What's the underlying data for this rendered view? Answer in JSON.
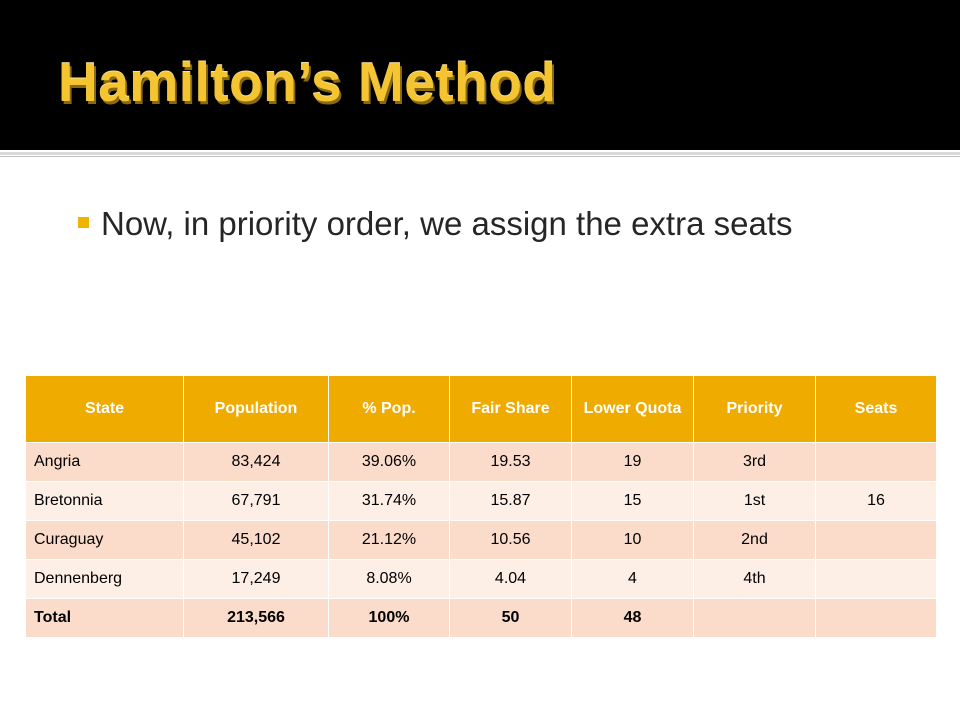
{
  "slide": {
    "title": "Hamilton’s Method",
    "bullet": "Now, in priority order, we assign the extra seats"
  },
  "table": {
    "headers": [
      "State",
      "Population",
      "% Pop.",
      "Fair Share",
      "Lower Quota",
      "Priority",
      "Seats"
    ],
    "rows": [
      [
        "Angria",
        "83,424",
        "39.06%",
        "19.53",
        "19",
        "3rd",
        ""
      ],
      [
        "Bretonnia",
        "67,791",
        "31.74%",
        "15.87",
        "15",
        "1st",
        "16"
      ],
      [
        "Curaguay",
        "45,102",
        "21.12%",
        "10.56",
        "10",
        "2nd",
        ""
      ],
      [
        "Dennenberg",
        "17,249",
        "8.08%",
        "4.04",
        "4",
        "4th",
        ""
      ],
      [
        "Total",
        "213,566",
        "100%",
        "50",
        "48",
        "",
        ""
      ]
    ]
  },
  "colors": {
    "title": "#f5c431",
    "header_fill": "#f0ab00",
    "row_even": "#fbdccb",
    "row_odd": "#fdeee6",
    "bullet": "#f0b400"
  }
}
